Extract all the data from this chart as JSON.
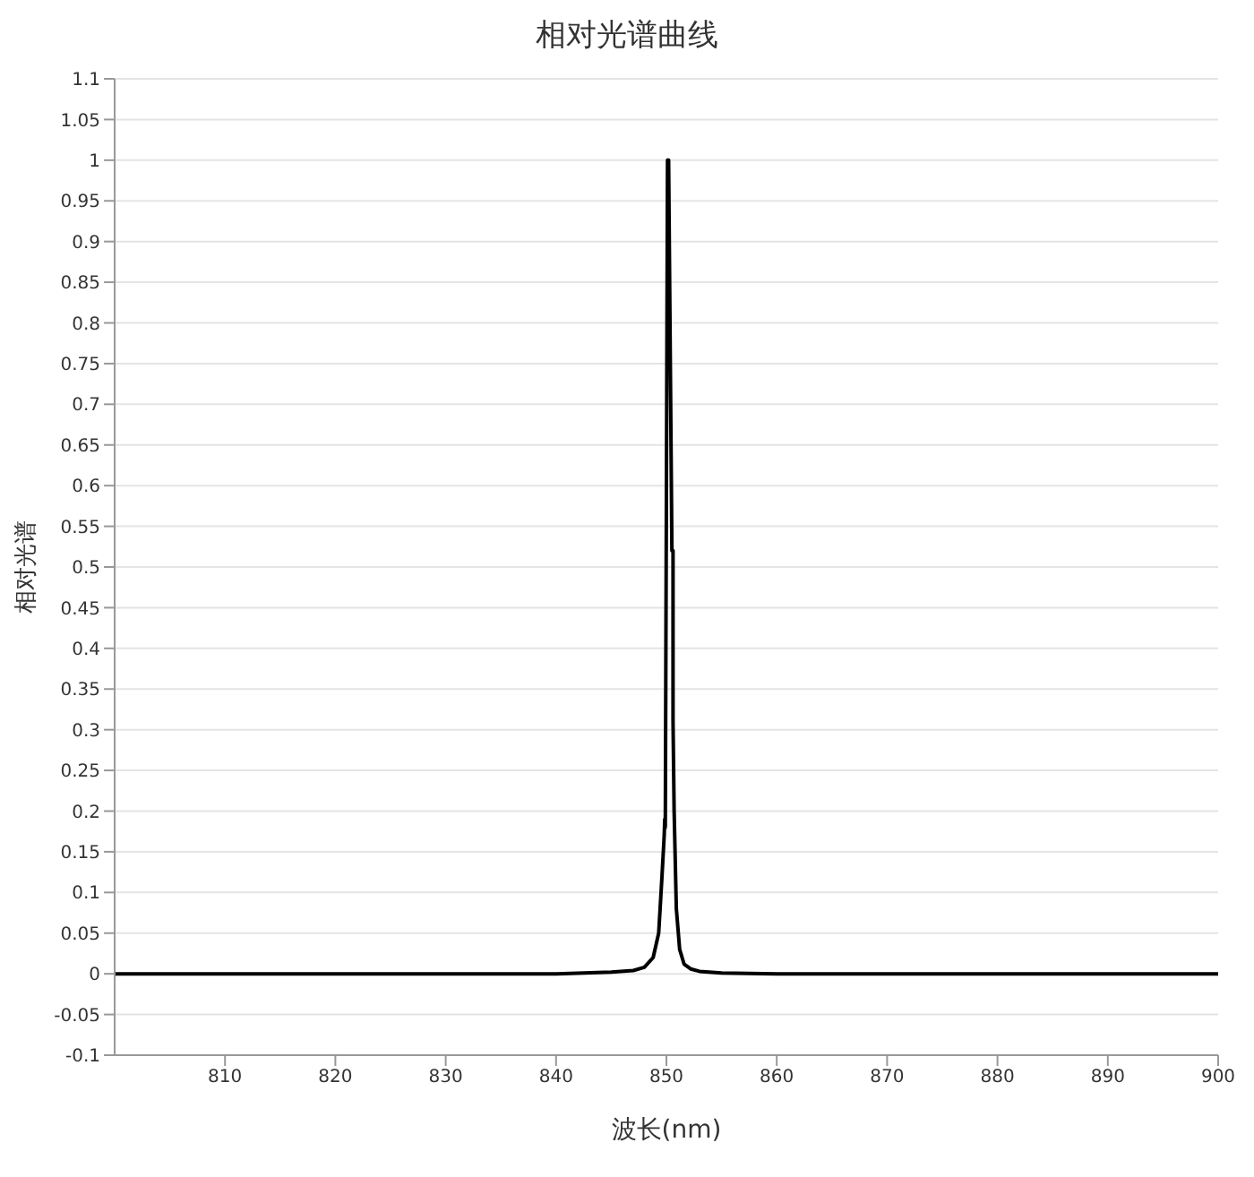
{
  "chart_data": {
    "type": "line",
    "title": "相对光谱曲线",
    "xlabel": "波长(nm)",
    "ylabel": "相对光谱",
    "xlim": [
      800,
      900
    ],
    "xticks": [
      810,
      820,
      830,
      840,
      850,
      860,
      870,
      880,
      890,
      900
    ],
    "ylim": [
      -0.1,
      1.1
    ],
    "yticks": [
      -0.1,
      -0.05,
      0,
      0.05,
      0.1,
      0.15,
      0.2,
      0.25,
      0.3,
      0.35,
      0.4,
      0.45,
      0.5,
      0.55,
      0.6,
      0.65,
      0.7,
      0.75,
      0.8,
      0.85,
      0.9,
      0.95,
      1,
      1.05,
      1.1
    ],
    "grid": "y",
    "marker": "none",
    "line_style": "solid",
    "series": [
      {
        "color": "#000000",
        "x": [
          800,
          820,
          840,
          845,
          847,
          848,
          848.8,
          849.3,
          849.6,
          849.8,
          849.85,
          849.9,
          850.1,
          850.2,
          850.5,
          850.6,
          850.6,
          850.7,
          850.9,
          851.2,
          851.6,
          852.2,
          853,
          855,
          860,
          880,
          900
        ],
        "values": [
          0,
          0,
          0,
          0.002,
          0.004,
          0.008,
          0.02,
          0.05,
          0.12,
          0.17,
          0.19,
          0.18,
          1,
          1,
          0.52,
          0.52,
          0.31,
          0.2,
          0.08,
          0.03,
          0.012,
          0.006,
          0.003,
          0.001,
          0,
          0,
          0
        ]
      }
    ]
  }
}
